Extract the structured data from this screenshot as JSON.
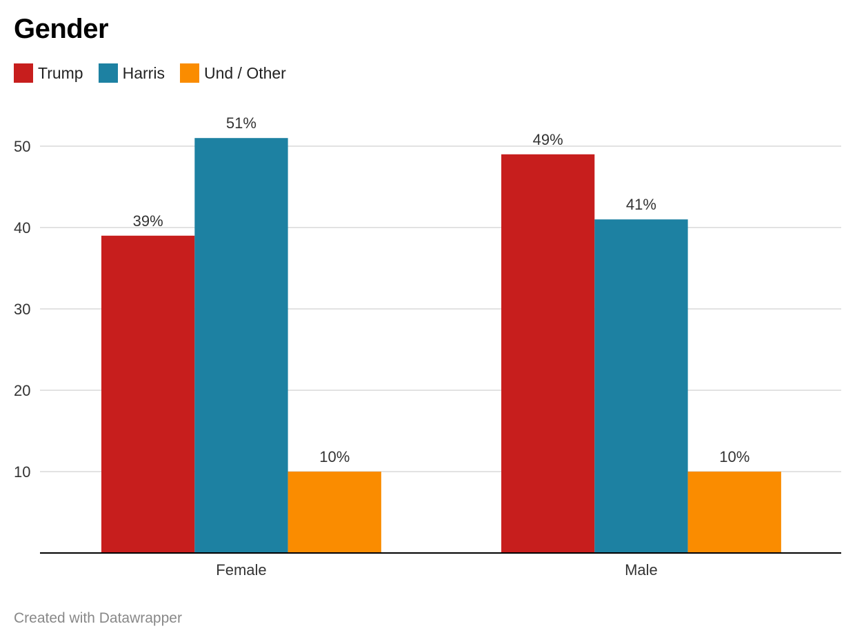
{
  "chart_data": {
    "type": "bar",
    "title": "Gender",
    "categories": [
      "Female",
      "Male"
    ],
    "series": [
      {
        "name": "Trump",
        "color": "#c71e1d",
        "values": [
          39,
          49
        ],
        "labels": [
          "39%",
          "49%"
        ]
      },
      {
        "name": "Harris",
        "color": "#1d81a2",
        "values": [
          51,
          41
        ],
        "labels": [
          "51%",
          "41%"
        ]
      },
      {
        "name": "Und / Other",
        "color": "#fa8c00",
        "values": [
          10,
          10
        ],
        "labels": [
          "10%",
          "10%"
        ]
      }
    ],
    "yticks": [
      10,
      20,
      30,
      40,
      50
    ],
    "ylim": [
      0,
      54
    ],
    "xlabel": "",
    "ylabel": "",
    "grid": true,
    "legend": "top-left"
  },
  "footer": {
    "credit": "Created with Datawrapper"
  }
}
